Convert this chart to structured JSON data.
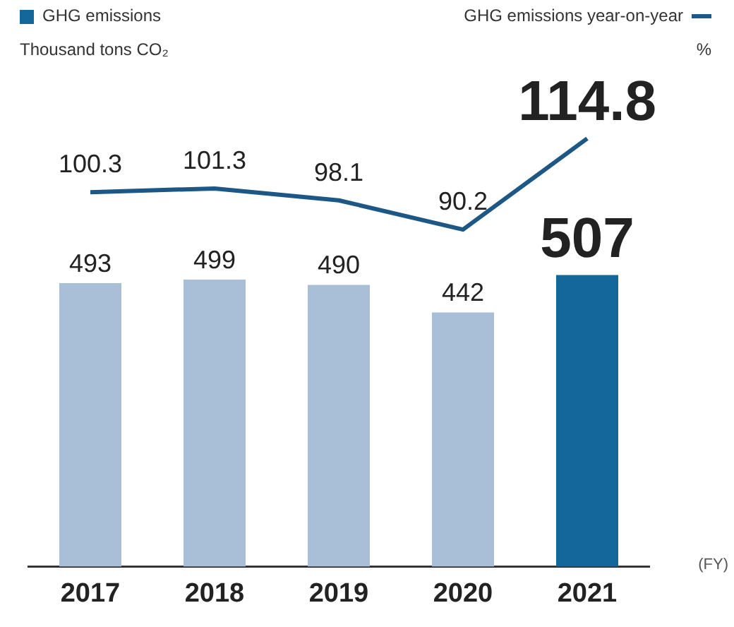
{
  "chart_data": [
    {
      "type": "bar",
      "xlabel": "(FY)",
      "annotations": [
        "Thousand tons CO₂"
      ],
      "categories": [
        "2017",
        "2018",
        "2019",
        "2020",
        "2021"
      ],
      "series": [
        {
          "name": "GHG emissions",
          "color": "#14679a",
          "colors": [
            "#a9bfd7",
            "#a9bfd7",
            "#a9bfd7",
            "#a9bfd7",
            "#14679a"
          ],
          "values": [
            493,
            499,
            490,
            442,
            507
          ]
        }
      ],
      "data_labels": true,
      "legend": "top left"
    },
    {
      "type": "line",
      "annotations": [
        "%"
      ],
      "categories": [
        "2017",
        "2018",
        "2019",
        "2020",
        "2021"
      ],
      "series": [
        {
          "name": "GHG emissions year-on-year",
          "color": "#1c5785",
          "values": [
            100.3,
            101.3,
            98.1,
            90.2,
            114.8
          ]
        }
      ],
      "data_labels": true,
      "legend": "top right",
      "tick_labels": false,
      "marker": "none",
      "line_style": "solid"
    }
  ]
}
